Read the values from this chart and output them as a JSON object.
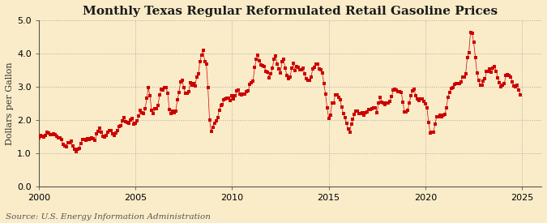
{
  "title": "Monthly Texas Regular Reformulated Retail Gasoline Prices",
  "ylabel": "Dollars per Gallon",
  "source": "Source: U.S. Energy Information Administration",
  "xlim": [
    2000,
    2026
  ],
  "ylim": [
    0.0,
    5.0
  ],
  "yticks": [
    0.0,
    1.0,
    2.0,
    3.0,
    4.0,
    5.0
  ],
  "xticks": [
    2000,
    2005,
    2010,
    2015,
    2020,
    2025
  ],
  "background_color": "#faecc8",
  "plot_bg_color": "#faecc8",
  "line_color": "#cc0000",
  "marker": "s",
  "marker_size": 3.2,
  "grid_color": "#aaaaaa",
  "grid_style": ":",
  "title_fontsize": 11,
  "label_fontsize": 8,
  "tick_fontsize": 8,
  "source_fontsize": 7.5,
  "data": [
    [
      2000.0,
      1.47
    ],
    [
      2000.083,
      1.53
    ],
    [
      2000.167,
      1.51
    ],
    [
      2000.25,
      1.49
    ],
    [
      2000.333,
      1.54
    ],
    [
      2000.417,
      1.64
    ],
    [
      2000.5,
      1.6
    ],
    [
      2000.583,
      1.55
    ],
    [
      2000.667,
      1.56
    ],
    [
      2000.75,
      1.58
    ],
    [
      2000.833,
      1.55
    ],
    [
      2000.917,
      1.51
    ],
    [
      2001.0,
      1.47
    ],
    [
      2001.083,
      1.47
    ],
    [
      2001.167,
      1.42
    ],
    [
      2001.25,
      1.27
    ],
    [
      2001.333,
      1.22
    ],
    [
      2001.417,
      1.18
    ],
    [
      2001.5,
      1.32
    ],
    [
      2001.583,
      1.31
    ],
    [
      2001.667,
      1.35
    ],
    [
      2001.75,
      1.22
    ],
    [
      2001.833,
      1.12
    ],
    [
      2001.917,
      1.05
    ],
    [
      2002.0,
      1.11
    ],
    [
      2002.083,
      1.15
    ],
    [
      2002.167,
      1.3
    ],
    [
      2002.25,
      1.4
    ],
    [
      2002.333,
      1.42
    ],
    [
      2002.417,
      1.38
    ],
    [
      2002.5,
      1.43
    ],
    [
      2002.583,
      1.42
    ],
    [
      2002.667,
      1.44
    ],
    [
      2002.75,
      1.47
    ],
    [
      2002.833,
      1.44
    ],
    [
      2002.917,
      1.39
    ],
    [
      2003.0,
      1.58
    ],
    [
      2003.083,
      1.66
    ],
    [
      2003.167,
      1.74
    ],
    [
      2003.25,
      1.62
    ],
    [
      2003.333,
      1.51
    ],
    [
      2003.417,
      1.49
    ],
    [
      2003.5,
      1.52
    ],
    [
      2003.583,
      1.64
    ],
    [
      2003.667,
      1.67
    ],
    [
      2003.75,
      1.68
    ],
    [
      2003.833,
      1.59
    ],
    [
      2003.917,
      1.53
    ],
    [
      2004.0,
      1.6
    ],
    [
      2004.083,
      1.67
    ],
    [
      2004.167,
      1.8
    ],
    [
      2004.25,
      1.83
    ],
    [
      2004.333,
      1.98
    ],
    [
      2004.417,
      2.06
    ],
    [
      2004.5,
      1.95
    ],
    [
      2004.583,
      1.92
    ],
    [
      2004.667,
      1.9
    ],
    [
      2004.75,
      2.0
    ],
    [
      2004.833,
      2.04
    ],
    [
      2004.917,
      1.88
    ],
    [
      2005.0,
      1.9
    ],
    [
      2005.083,
      1.96
    ],
    [
      2005.167,
      2.11
    ],
    [
      2005.25,
      2.28
    ],
    [
      2005.333,
      2.22
    ],
    [
      2005.417,
      2.19
    ],
    [
      2005.5,
      2.33
    ],
    [
      2005.583,
      2.65
    ],
    [
      2005.667,
      2.96
    ],
    [
      2005.75,
      2.72
    ],
    [
      2005.833,
      2.3
    ],
    [
      2005.917,
      2.18
    ],
    [
      2006.0,
      2.33
    ],
    [
      2006.083,
      2.33
    ],
    [
      2006.167,
      2.44
    ],
    [
      2006.25,
      2.75
    ],
    [
      2006.333,
      2.93
    ],
    [
      2006.417,
      2.89
    ],
    [
      2006.5,
      2.96
    ],
    [
      2006.583,
      2.97
    ],
    [
      2006.667,
      2.8
    ],
    [
      2006.75,
      2.32
    ],
    [
      2006.833,
      2.18
    ],
    [
      2006.917,
      2.26
    ],
    [
      2007.0,
      2.22
    ],
    [
      2007.083,
      2.27
    ],
    [
      2007.167,
      2.6
    ],
    [
      2007.25,
      2.82
    ],
    [
      2007.333,
      3.15
    ],
    [
      2007.417,
      3.2
    ],
    [
      2007.5,
      2.96
    ],
    [
      2007.583,
      2.81
    ],
    [
      2007.667,
      2.81
    ],
    [
      2007.75,
      2.84
    ],
    [
      2007.833,
      3.12
    ],
    [
      2007.917,
      3.05
    ],
    [
      2008.0,
      3.1
    ],
    [
      2008.083,
      3.03
    ],
    [
      2008.167,
      3.28
    ],
    [
      2008.25,
      3.38
    ],
    [
      2008.333,
      3.75
    ],
    [
      2008.417,
      3.96
    ],
    [
      2008.5,
      4.09
    ],
    [
      2008.583,
      3.76
    ],
    [
      2008.667,
      3.67
    ],
    [
      2008.75,
      2.96
    ],
    [
      2008.833,
      2.0
    ],
    [
      2008.917,
      1.65
    ],
    [
      2009.0,
      1.78
    ],
    [
      2009.083,
      1.91
    ],
    [
      2009.167,
      1.96
    ],
    [
      2009.25,
      2.06
    ],
    [
      2009.333,
      2.29
    ],
    [
      2009.417,
      2.43
    ],
    [
      2009.5,
      2.47
    ],
    [
      2009.583,
      2.61
    ],
    [
      2009.667,
      2.62
    ],
    [
      2009.75,
      2.65
    ],
    [
      2009.833,
      2.65
    ],
    [
      2009.917,
      2.59
    ],
    [
      2010.0,
      2.73
    ],
    [
      2010.083,
      2.62
    ],
    [
      2010.167,
      2.72
    ],
    [
      2010.25,
      2.88
    ],
    [
      2010.333,
      2.9
    ],
    [
      2010.417,
      2.77
    ],
    [
      2010.5,
      2.76
    ],
    [
      2010.583,
      2.78
    ],
    [
      2010.667,
      2.77
    ],
    [
      2010.75,
      2.84
    ],
    [
      2010.833,
      2.88
    ],
    [
      2010.917,
      3.06
    ],
    [
      2011.0,
      3.13
    ],
    [
      2011.083,
      3.17
    ],
    [
      2011.167,
      3.57
    ],
    [
      2011.25,
      3.82
    ],
    [
      2011.333,
      3.96
    ],
    [
      2011.417,
      3.77
    ],
    [
      2011.5,
      3.65
    ],
    [
      2011.583,
      3.62
    ],
    [
      2011.667,
      3.6
    ],
    [
      2011.75,
      3.45
    ],
    [
      2011.833,
      3.43
    ],
    [
      2011.917,
      3.27
    ],
    [
      2012.0,
      3.38
    ],
    [
      2012.083,
      3.55
    ],
    [
      2012.167,
      3.83
    ],
    [
      2012.25,
      3.93
    ],
    [
      2012.333,
      3.68
    ],
    [
      2012.417,
      3.53
    ],
    [
      2012.5,
      3.4
    ],
    [
      2012.583,
      3.76
    ],
    [
      2012.667,
      3.82
    ],
    [
      2012.75,
      3.55
    ],
    [
      2012.833,
      3.34
    ],
    [
      2012.917,
      3.24
    ],
    [
      2013.0,
      3.3
    ],
    [
      2013.083,
      3.55
    ],
    [
      2013.167,
      3.7
    ],
    [
      2013.25,
      3.48
    ],
    [
      2013.333,
      3.6
    ],
    [
      2013.417,
      3.59
    ],
    [
      2013.5,
      3.52
    ],
    [
      2013.583,
      3.52
    ],
    [
      2013.667,
      3.56
    ],
    [
      2013.75,
      3.39
    ],
    [
      2013.833,
      3.23
    ],
    [
      2013.917,
      3.18
    ],
    [
      2014.0,
      3.18
    ],
    [
      2014.083,
      3.28
    ],
    [
      2014.167,
      3.53
    ],
    [
      2014.25,
      3.59
    ],
    [
      2014.333,
      3.68
    ],
    [
      2014.417,
      3.68
    ],
    [
      2014.5,
      3.54
    ],
    [
      2014.583,
      3.52
    ],
    [
      2014.667,
      3.41
    ],
    [
      2014.75,
      3.09
    ],
    [
      2014.833,
      2.77
    ],
    [
      2014.917,
      2.35
    ],
    [
      2015.0,
      2.05
    ],
    [
      2015.083,
      2.15
    ],
    [
      2015.167,
      2.5
    ],
    [
      2015.25,
      2.52
    ],
    [
      2015.333,
      2.75
    ],
    [
      2015.417,
      2.74
    ],
    [
      2015.5,
      2.69
    ],
    [
      2015.583,
      2.61
    ],
    [
      2015.667,
      2.39
    ],
    [
      2015.75,
      2.19
    ],
    [
      2015.833,
      2.07
    ],
    [
      2015.917,
      1.89
    ],
    [
      2016.0,
      1.72
    ],
    [
      2016.083,
      1.64
    ],
    [
      2016.167,
      1.87
    ],
    [
      2016.25,
      2.03
    ],
    [
      2016.333,
      2.16
    ],
    [
      2016.417,
      2.27
    ],
    [
      2016.5,
      2.26
    ],
    [
      2016.583,
      2.18
    ],
    [
      2016.667,
      2.18
    ],
    [
      2016.75,
      2.22
    ],
    [
      2016.833,
      2.13
    ],
    [
      2016.917,
      2.21
    ],
    [
      2017.0,
      2.23
    ],
    [
      2017.083,
      2.31
    ],
    [
      2017.167,
      2.31
    ],
    [
      2017.25,
      2.34
    ],
    [
      2017.333,
      2.35
    ],
    [
      2017.417,
      2.36
    ],
    [
      2017.5,
      2.22
    ],
    [
      2017.583,
      2.52
    ],
    [
      2017.667,
      2.67
    ],
    [
      2017.75,
      2.54
    ],
    [
      2017.833,
      2.52
    ],
    [
      2017.917,
      2.47
    ],
    [
      2018.0,
      2.51
    ],
    [
      2018.083,
      2.5
    ],
    [
      2018.167,
      2.56
    ],
    [
      2018.25,
      2.7
    ],
    [
      2018.333,
      2.89
    ],
    [
      2018.417,
      2.93
    ],
    [
      2018.5,
      2.89
    ],
    [
      2018.583,
      2.85
    ],
    [
      2018.667,
      2.84
    ],
    [
      2018.75,
      2.83
    ],
    [
      2018.833,
      2.54
    ],
    [
      2018.917,
      2.25
    ],
    [
      2019.0,
      2.24
    ],
    [
      2019.083,
      2.28
    ],
    [
      2019.167,
      2.52
    ],
    [
      2019.25,
      2.72
    ],
    [
      2019.333,
      2.87
    ],
    [
      2019.417,
      2.92
    ],
    [
      2019.5,
      2.72
    ],
    [
      2019.583,
      2.64
    ],
    [
      2019.667,
      2.58
    ],
    [
      2019.75,
      2.63
    ],
    [
      2019.833,
      2.63
    ],
    [
      2019.917,
      2.56
    ],
    [
      2020.0,
      2.48
    ],
    [
      2020.083,
      2.35
    ],
    [
      2020.167,
      1.92
    ],
    [
      2020.25,
      1.6
    ],
    [
      2020.333,
      1.64
    ],
    [
      2020.417,
      1.63
    ],
    [
      2020.5,
      1.88
    ],
    [
      2020.583,
      2.1
    ],
    [
      2020.667,
      2.1
    ],
    [
      2020.75,
      2.13
    ],
    [
      2020.833,
      2.1
    ],
    [
      2020.917,
      2.13
    ],
    [
      2021.0,
      2.17
    ],
    [
      2021.083,
      2.35
    ],
    [
      2021.167,
      2.68
    ],
    [
      2021.25,
      2.82
    ],
    [
      2021.333,
      2.94
    ],
    [
      2021.417,
      2.96
    ],
    [
      2021.5,
      3.06
    ],
    [
      2021.583,
      3.1
    ],
    [
      2021.667,
      3.1
    ],
    [
      2021.75,
      3.09
    ],
    [
      2021.833,
      3.15
    ],
    [
      2021.917,
      3.28
    ],
    [
      2022.0,
      3.28
    ],
    [
      2022.083,
      3.39
    ],
    [
      2022.167,
      3.88
    ],
    [
      2022.25,
      4.03
    ],
    [
      2022.333,
      4.64
    ],
    [
      2022.417,
      4.6
    ],
    [
      2022.5,
      4.34
    ],
    [
      2022.583,
      3.88
    ],
    [
      2022.667,
      3.41
    ],
    [
      2022.75,
      3.19
    ],
    [
      2022.833,
      3.05
    ],
    [
      2022.917,
      3.04
    ],
    [
      2023.0,
      3.16
    ],
    [
      2023.083,
      3.25
    ],
    [
      2023.167,
      3.45
    ],
    [
      2023.25,
      3.46
    ],
    [
      2023.333,
      3.54
    ],
    [
      2023.417,
      3.44
    ],
    [
      2023.5,
      3.56
    ],
    [
      2023.583,
      3.6
    ],
    [
      2023.667,
      3.47
    ],
    [
      2023.75,
      3.26
    ],
    [
      2023.833,
      3.12
    ],
    [
      2023.917,
      3.0
    ],
    [
      2024.0,
      3.04
    ],
    [
      2024.083,
      3.1
    ],
    [
      2024.167,
      3.34
    ],
    [
      2024.25,
      3.36
    ],
    [
      2024.333,
      3.34
    ],
    [
      2024.417,
      3.3
    ],
    [
      2024.5,
      3.14
    ],
    [
      2024.583,
      3.02
    ],
    [
      2024.667,
      3.0
    ],
    [
      2024.75,
      3.05
    ],
    [
      2024.833,
      2.9
    ],
    [
      2024.917,
      2.76
    ]
  ]
}
